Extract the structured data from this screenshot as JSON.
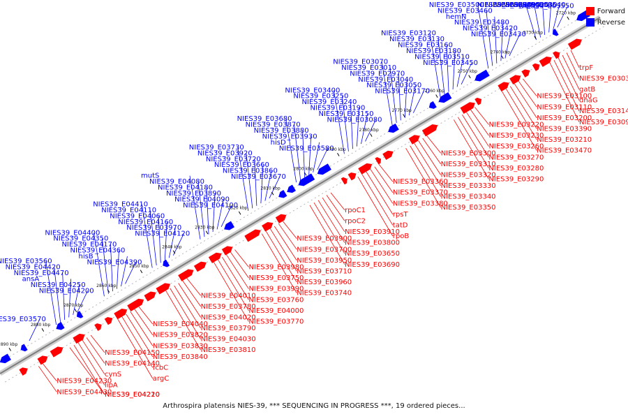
{
  "caption": "Arthrospira platensis NIES-39, *** SEQUENCING IN PROGRESS ***, 19 ordered pieces...",
  "legend": {
    "forward": "Forward",
    "reverse": "Reverse"
  },
  "colors": {
    "forward": "#ff0000",
    "reverse": "#0000ff",
    "leader_forward": "#ff0000",
    "leader_reverse": "#0000ff",
    "axis": "#999999",
    "tick": "#000000"
  },
  "kbp_ticks": [
    "2720 kbp",
    "2730 kbp",
    "2740 kbp",
    "2750 kbp",
    "2760 kbp",
    "2770 kbp",
    "2780 kbp",
    "2790 kbp",
    "2800 kbp",
    "2810 kbp",
    "2820 kbp",
    "2830 kbp",
    "2840 kbp",
    "2850 kbp",
    "2860 kbp",
    "2870 kbp",
    "2880 kbp",
    "2890 kbp"
  ],
  "reverse_labels": [
    "NIES39_E03550",
    "NIES39_E03540",
    "NIES39_E03530",
    "NIES39_E03520",
    "NIES39_E03490",
    "NIES39_E03440",
    "NIES39_E03430",
    "NIES39_E03420",
    "NIES39_E03480",
    "hemN",
    "NIES39_E03460",
    "NIES39_E03500",
    "NIES39_E03450",
    "NIES39_E03510",
    "NIES39_E03180",
    "NIES39_E03160",
    "NIES39_E03130",
    "NIES39_E03120",
    "NIES39_E03170",
    "NIES39_E03050",
    "NIES39_E03040",
    "NIES39_E02970",
    "NIES39_E03010",
    "NIES39_E03070",
    "NIES39_E03080",
    "NIES39_E03150",
    "NIES39_E03190",
    "NIES39_E03240",
    "NIES39_E03250",
    "NIES39_E03400",
    "NIES39_E03580",
    "hisD",
    "NIES39_E03930",
    "NIES39_E03880",
    "NIES39_E03870",
    "NIES39_E03680",
    "NIES39_E03670",
    "NIES39_E03860",
    "NIES39_E03660",
    "NIES39_E03720",
    "NIES39_E03920",
    "NIES39_E03730",
    "NIES39_E04100",
    "NIES39_E04090",
    "NIES39_E03890",
    "NIES39_E04180",
    "NIES39_E04080",
    "mutS",
    "NIES39_E04120",
    "NIES39_E03970",
    "NIES39_E04160",
    "NIES39_E04060",
    "NIES39_E04110",
    "NIES39_E04410",
    "NIES39_E04390",
    "hisB",
    "NIES39_E04360",
    "NIES39_E04170",
    "NIES39_E04350",
    "NIES39_E04400",
    "NIES39_E04200",
    "NIES39_E04250",
    "ansA",
    "NIES39_E04470",
    "NIES39_E04420",
    "NIES39_E03560",
    "NIES39_E03570"
  ],
  "forward_labels": [
    "trpF",
    "NIES39_E03030",
    "gatB",
    "dnaG",
    "NIES39_E03140",
    "NIES39_E03090",
    "NIES39_E03100",
    "NIES39_E03110",
    "NIES39_E03200",
    "NIES39_E03390",
    "NIES39_E03210",
    "NIES39_E03470",
    "NIES39_E03220",
    "NIES39_E03230",
    "NIES39_E03260",
    "NIES39_E03270",
    "NIES39_E03280",
    "NIES39_E03290",
    "NIES39_E03300",
    "NIES39_E03310",
    "NIES39_E03320",
    "NIES39_E03330",
    "NIES39_E03340",
    "NIES39_E03350",
    "NIES39_E03360",
    "NIES39_E03370",
    "NIES39_E03380",
    "rpsT",
    "tatD",
    "rpoB",
    "rpoC1",
    "rpoC2",
    "NIES39_E03910",
    "NIES39_E03800",
    "NIES39_E03650",
    "NIES39_E03690",
    "NIES39_E03900",
    "NIES39_E03700",
    "NIES39_E03950",
    "NIES39_E03710",
    "NIES39_E03960",
    "NIES39_E03740",
    "NIES39_E03980",
    "NIES39_E03750",
    "NIES39_E03990",
    "NIES39_E03760",
    "NIES39_E04000",
    "NIES39_E03770",
    "NIES39_E04010",
    "NIES39_E03780",
    "NIES39_E04020",
    "NIES39_E03790",
    "NIES39_E04030",
    "NIES39_E03810",
    "NIES39_E04040",
    "NIES39_E03820",
    "NIES39_E03830",
    "NIES39_E03840",
    "fcbC",
    "argC",
    "NIES39_E04150",
    "NIES39_E04140",
    "cynS",
    "lipA",
    "NIES39_E04210",
    "NIES39_E04220",
    "NIES39_E04230",
    "NIES39_E04430"
  ]
}
